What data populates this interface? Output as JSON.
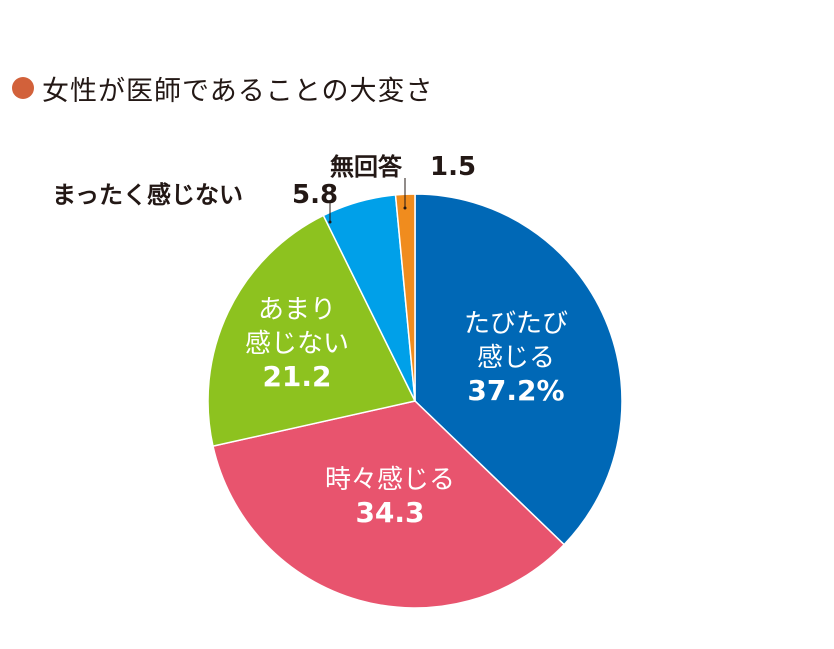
{
  "title": {
    "text": "女性が医師であることの大変さ",
    "dot_color": "#d2613a"
  },
  "chart_data": {
    "type": "pie",
    "title": "女性が医師であることの大変さ",
    "start": "top",
    "direction": "clockwise",
    "slices": [
      {
        "label_lines": [
          "たびたび",
          "感じる"
        ],
        "value": 37.2,
        "value_text": "37.2%",
        "color": "#0068b6",
        "label_placement": "inside"
      },
      {
        "label_lines": [
          "時々感じる"
        ],
        "value": 34.3,
        "value_text": "34.3",
        "color": "#e8546e",
        "label_placement": "inside"
      },
      {
        "label_lines": [
          "あまり",
          "感じない"
        ],
        "value": 21.2,
        "value_text": "21.2",
        "color": "#8dc21f",
        "label_placement": "inside"
      },
      {
        "label_lines": [
          "まったく感じない"
        ],
        "value": 5.8,
        "value_text": "5.8",
        "color": "#00a0e9",
        "label_placement": "outside"
      },
      {
        "label_lines": [
          "無回答"
        ],
        "value": 1.5,
        "value_text": "1.5",
        "color": "#f08c1e",
        "label_placement": "outside"
      }
    ]
  }
}
